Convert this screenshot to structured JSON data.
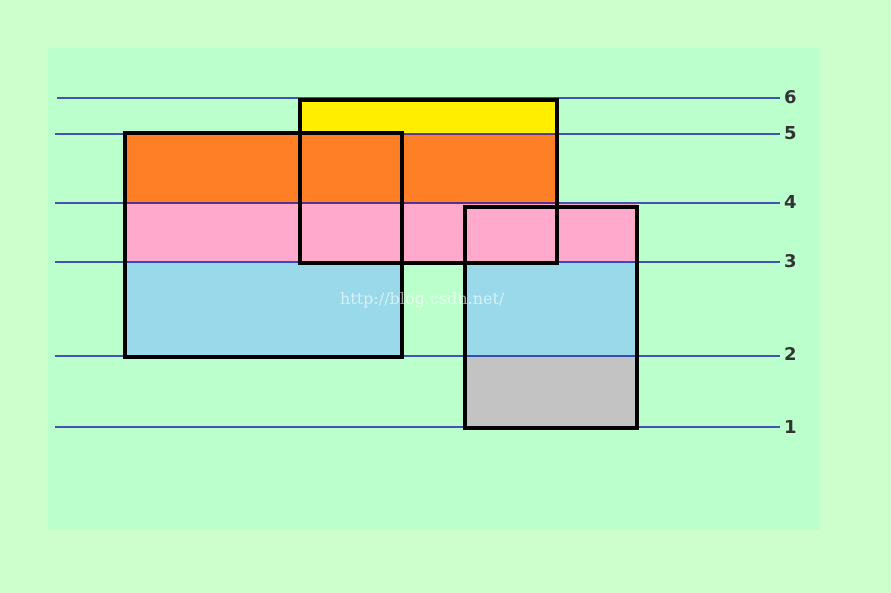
{
  "levels": [
    "6",
    "5",
    "4",
    "3",
    "2",
    "1"
  ],
  "watermark": "http://blog.csdn.net/"
}
